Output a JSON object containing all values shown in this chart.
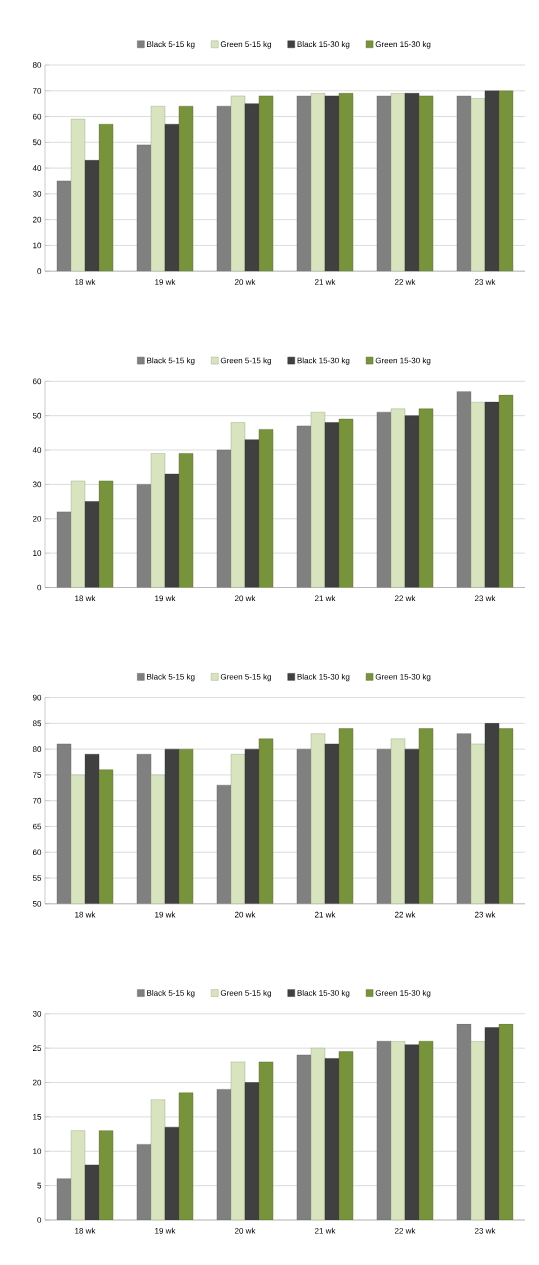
{
  "chart_data": [
    {
      "type": "bar",
      "categories": [
        "18 wk",
        "19 wk",
        "20 wk",
        "21 wk",
        "22 wk",
        "23 wk"
      ],
      "series": [
        {
          "name": "Black 5-15 kg",
          "color": "#808080",
          "values": [
            35,
            49,
            64,
            68,
            68,
            68
          ]
        },
        {
          "name": "Green 5-15 kg",
          "color": "#d7e4bd",
          "values": [
            59,
            64,
            68,
            69,
            69,
            67
          ]
        },
        {
          "name": "Black 15-30 kg",
          "color": "#404040",
          "values": [
            43,
            57,
            65,
            68,
            69,
            70
          ]
        },
        {
          "name": "Green 15-30 kg",
          "color": "#77933c",
          "values": [
            57,
            64,
            68,
            69,
            68,
            70
          ]
        }
      ],
      "ylim": [
        0,
        80
      ],
      "yticks": [
        0,
        10,
        20,
        30,
        40,
        50,
        60,
        70,
        80
      ],
      "grid": "y",
      "legend": "top"
    },
    {
      "type": "bar",
      "categories": [
        "18 wk",
        "19 wk",
        "20 wk",
        "21 wk",
        "22 wk",
        "23 wk"
      ],
      "series": [
        {
          "name": "Black 5-15 kg",
          "color": "#808080",
          "values": [
            22,
            30,
            40,
            47,
            51,
            57
          ]
        },
        {
          "name": "Green 5-15 kg",
          "color": "#d7e4bd",
          "values": [
            31,
            39,
            48,
            51,
            52,
            54
          ]
        },
        {
          "name": "Black 15-30 kg",
          "color": "#404040",
          "values": [
            25,
            33,
            43,
            48,
            50,
            54
          ]
        },
        {
          "name": "Green 15-30 kg",
          "color": "#77933c",
          "values": [
            31,
            39,
            46,
            49,
            52,
            56
          ]
        }
      ],
      "ylim": [
        0,
        60
      ],
      "yticks": [
        0,
        10,
        20,
        30,
        40,
        50,
        60
      ],
      "grid": "y",
      "legend": "top"
    },
    {
      "type": "bar",
      "categories": [
        "18 wk",
        "19 wk",
        "20 wk",
        "21 wk",
        "22 wk",
        "23 wk"
      ],
      "series": [
        {
          "name": "Black 5-15 kg",
          "color": "#808080",
          "values": [
            81,
            79,
            73,
            80,
            80,
            83
          ]
        },
        {
          "name": "Green 5-15 kg",
          "color": "#d7e4bd",
          "values": [
            75,
            75,
            79,
            83,
            82,
            81
          ]
        },
        {
          "name": "Black 15-30 kg",
          "color": "#404040",
          "values": [
            79,
            80,
            80,
            81,
            80,
            85
          ]
        },
        {
          "name": "Green 15-30 kg",
          "color": "#77933c",
          "values": [
            76,
            80,
            82,
            84,
            84,
            84
          ]
        }
      ],
      "ylim": [
        50,
        90
      ],
      "yticks": [
        50,
        55,
        60,
        65,
        70,
        75,
        80,
        85,
        90
      ],
      "grid": "y",
      "legend": "top"
    },
    {
      "type": "bar",
      "categories": [
        "18 wk",
        "19 wk",
        "20 wk",
        "21 wk",
        "22 wk",
        "23 wk"
      ],
      "series": [
        {
          "name": "Black 5-15 kg",
          "color": "#808080",
          "values": [
            6,
            11,
            19,
            24,
            26,
            28.5
          ]
        },
        {
          "name": "Green 5-15 kg",
          "color": "#d7e4bd",
          "values": [
            13,
            17.5,
            23,
            25,
            26,
            26
          ]
        },
        {
          "name": "Black 15-30 kg",
          "color": "#404040",
          "values": [
            8,
            13.5,
            20,
            23.5,
            25.5,
            28
          ]
        },
        {
          "name": "Green 15-30 kg",
          "color": "#77933c",
          "values": [
            13,
            18.5,
            23,
            24.5,
            26,
            28.5
          ]
        }
      ],
      "ylim": [
        0,
        30
      ],
      "yticks": [
        0,
        5,
        10,
        15,
        20,
        25,
        30
      ],
      "grid": "y",
      "legend": "top"
    }
  ]
}
